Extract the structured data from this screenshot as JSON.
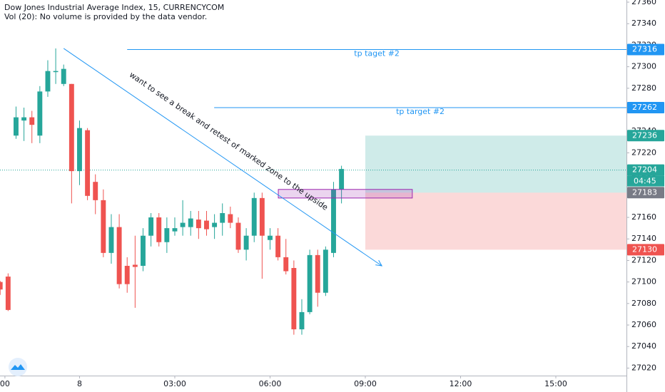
{
  "chart_data": {
    "type": "candlestick",
    "title": "Dow Jones Industrial Average Index, 15, CURRENCYCOM",
    "subtitle": "Vol (20): No volume is provided by the data vendor.",
    "up_color": "#26a69a",
    "down_color": "#ef5350",
    "x": [
      -2.5,
      -2.25,
      -2,
      -1.75,
      -1.5,
      -1.25,
      -1,
      -0.75,
      -0.5,
      -0.25,
      0,
      0.25,
      0.5,
      0.75,
      1,
      1.25,
      1.5,
      1.75,
      2,
      2.25,
      2.5,
      2.75,
      3,
      3.25,
      3.5,
      3.75,
      4,
      4.25,
      4.5,
      4.75,
      5,
      5.25,
      5.5,
      5.75,
      6,
      6.25,
      6.5,
      6.75,
      7,
      7.25,
      7.5,
      7.75,
      8,
      8.25
    ],
    "open": [
      27100,
      27105,
      27236,
      27250,
      27253,
      27236,
      27277,
      27295,
      27284,
      27284,
      27203,
      27241,
      27193,
      27176,
      27127,
      27151,
      27115,
      27116,
      27115,
      27143,
      27160,
      27137,
      27147,
      27151,
      27151,
      27158,
      27157,
      27151,
      27155,
      27163,
      27155,
      27130,
      27143,
      27178,
      27139,
      27143,
      27123,
      27113,
      27056,
      27072,
      27125,
      27090,
      27127,
      27186
    ],
    "high": [
      27101,
      27108,
      27263,
      27262,
      27259,
      27282,
      27306,
      27317,
      27302,
      27284,
      27250,
      27243,
      27200,
      27186,
      27163,
      27163,
      27123,
      27143,
      27150,
      27164,
      27164,
      27160,
      27160,
      27176,
      27166,
      27166,
      27166,
      27163,
      27173,
      27170,
      27160,
      27150,
      27183,
      27183,
      27150,
      27150,
      27140,
      27120,
      27084,
      27130,
      27130,
      27133,
      27193,
      27208
    ],
    "low": [
      27088,
      27073,
      27233,
      27231,
      27229,
      27229,
      27272,
      27284,
      27282,
      27173,
      27190,
      27176,
      27163,
      27123,
      27117,
      27094,
      27090,
      27076,
      27110,
      27133,
      27133,
      27127,
      27143,
      27143,
      27143,
      27140,
      27143,
      27140,
      27143,
      27150,
      27127,
      27120,
      27137,
      27103,
      27130,
      27120,
      27107,
      27051,
      27051,
      27070,
      27077,
      27087,
      27123,
      27173
    ],
    "close": [
      27093,
      27074,
      27253,
      27253,
      27246,
      27277,
      27296,
      27296,
      27298,
      27203,
      27243,
      27180,
      27176,
      27127,
      27151,
      27098,
      27098,
      27114,
      27143,
      27160,
      27137,
      27150,
      27150,
      27155,
      27159,
      27150,
      27149,
      27155,
      27164,
      27155,
      27130,
      27143,
      27178,
      27143,
      27143,
      27123,
      27110,
      27056,
      27072,
      27125,
      27090,
      27130,
      27186,
      27205
    ],
    "xlim": [
      -2.505,
      17.225
    ],
    "ylim": [
      27013,
      27362
    ],
    "xticks": [
      {
        "value": -2.35,
        "label": "00"
      },
      {
        "value": 0,
        "label": "8"
      },
      {
        "value": 3,
        "label": "03:00"
      },
      {
        "value": 6,
        "label": "06:00"
      },
      {
        "value": 9,
        "label": "09:00"
      },
      {
        "value": 12,
        "label": "12:00"
      },
      {
        "value": 15,
        "label": "15:00"
      }
    ],
    "yticks": [
      27020,
      27040,
      27060,
      27080,
      27100,
      27120,
      27140,
      27160,
      27180,
      27200,
      27220,
      27240,
      27260,
      27280,
      27300,
      27320,
      27340,
      27360
    ],
    "trendline": {
      "x": [
        -0.5,
        9.52
      ],
      "price": [
        27317,
        27115
      ],
      "color": "#2196f3"
    },
    "annotation": "want to see a break and retest of marked zone to the upside",
    "hlines": [
      {
        "label": "tp taget #2",
        "price": 27316,
        "x_start": 1.5,
        "color": "#2196f3"
      },
      {
        "label": "tp target #2",
        "price": 27262,
        "x_start": 4.24,
        "color": "#2196f3"
      }
    ],
    "position": {
      "x_start": 9.0,
      "entry": 27183,
      "target": 27236,
      "stop": 27130
    },
    "zone": {
      "x_start": 6.26,
      "x_end": 10.48,
      "top": 27186,
      "bottom": 27178,
      "color": "#9c27b0"
    },
    "last_price": 27204,
    "countdown": "04:45"
  }
}
